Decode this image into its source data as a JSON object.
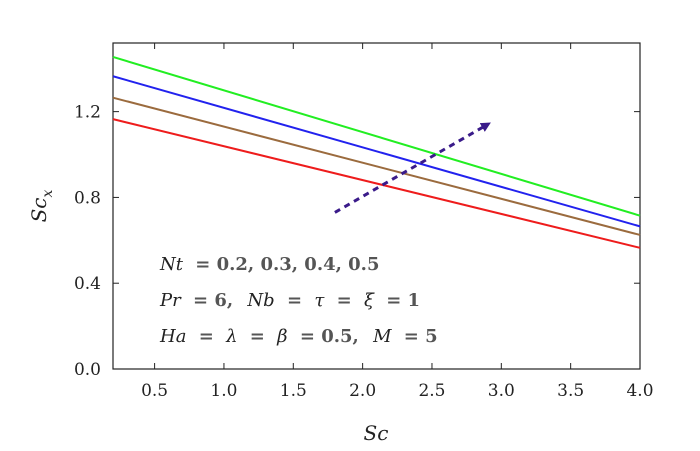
{
  "chart_data": {
    "type": "line",
    "title": "",
    "xlabel": "Sc",
    "ylabel": "Sc_x",
    "xlim": [
      0.2,
      4.0
    ],
    "ylim": [
      0.0,
      1.52
    ],
    "x_ticks": [
      0.5,
      1.0,
      1.5,
      2.0,
      2.5,
      3.0,
      3.5,
      4.0
    ],
    "x_tick_labels": [
      "0.5",
      "1.0",
      "1.5",
      "2.0",
      "2.5",
      "3.0",
      "3.5",
      "4.0"
    ],
    "y_ticks": [
      0.0,
      0.4,
      0.8,
      1.2
    ],
    "y_tick_labels": [
      "0.0",
      "0.4",
      "0.8",
      "1.2"
    ],
    "grid": false,
    "series": [
      {
        "color": "#ee1c1c",
        "x": [
          0.2,
          4.0
        ],
        "values": [
          1.165,
          0.565
        ]
      },
      {
        "color": "#9b6b3e",
        "x": [
          0.2,
          4.0
        ],
        "values": [
          1.265,
          0.625
        ]
      },
      {
        "color": "#2222ee",
        "x": [
          0.2,
          4.0
        ],
        "values": [
          1.365,
          0.665
        ]
      },
      {
        "color": "#22ee22",
        "x": [
          0.2,
          4.0
        ],
        "values": [
          1.455,
          0.715
        ]
      }
    ],
    "arrow": {
      "color": "#3a1b8a",
      "from": [
        1.8,
        0.73
      ],
      "to": [
        2.9,
        1.14
      ]
    },
    "annotation": {
      "line1": {
        "var": "Nt",
        "text": "= 0.2, 0.3, 0.4, 0.5"
      },
      "line2": {
        "var1": "Pr",
        "text1": "= 6,",
        "var2": "Nb",
        "text2": "=",
        "var3": "τ",
        "text3": "=",
        "var4": "ξ",
        "text4": "= 1"
      },
      "line3": {
        "var1": "Ha",
        "text1": "=",
        "var2": "λ",
        "text2": "=",
        "var3": "β",
        "text3": "= 0.5,",
        "var4": "M",
        "text4": "= 5"
      }
    }
  }
}
